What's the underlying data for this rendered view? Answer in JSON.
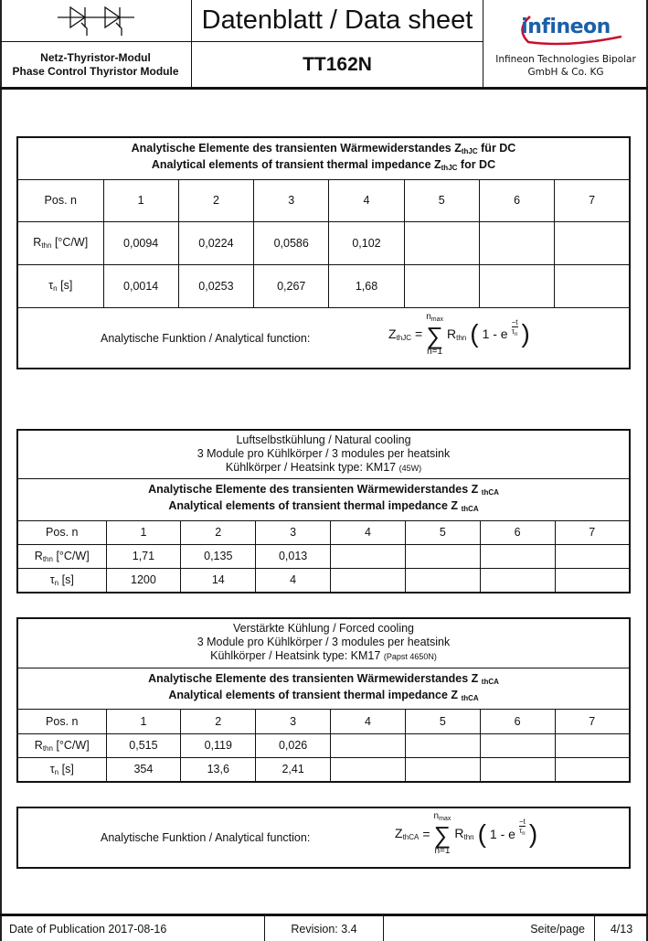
{
  "header": {
    "title": "Datenblatt / Data sheet",
    "module_de": "Netz-Thyristor-Modul",
    "module_en": "Phase Control Thyristor Module",
    "part": "TT162N",
    "logo_text": "infineon",
    "company_1": "Infineon Technologies Bipolar",
    "company_2": "GmbH & Co. KG",
    "symbol_icon": "thyristor-pair-symbol"
  },
  "table1": {
    "title_de": "Analytische Elemente des transienten Wärmewiderstandes Z",
    "title_de_sub": "thJC",
    "title_de_end": "für DC",
    "title_en": "Analytical elements of transient thermal impedance Z",
    "title_en_sub": "thJC",
    "title_en_end": "for DC",
    "pos_label": "Pos. n",
    "positions": [
      "1",
      "2",
      "3",
      "4",
      "5",
      "6",
      "7"
    ],
    "r_label": "R",
    "r_sub": "thn",
    "r_unit": "[°C/W]",
    "r_values": [
      "0,0094",
      "0,0224",
      "0,0586",
      "0,102",
      "",
      "",
      ""
    ],
    "tau_label": "τ",
    "tau_sub": "n",
    "tau_unit": "[s]",
    "tau_values": [
      "0,0014",
      "0,0253",
      "0,267",
      "1,68",
      "",
      "",
      ""
    ],
    "function_label": "Analytische Funktion / Analytical function:",
    "z": "Z",
    "z_sub": "thJC"
  },
  "formula": {
    "eq": "=",
    "sum": "∑",
    "nmax": "n",
    "nmax_sub": "max",
    "n1": "n=1",
    "r": "R",
    "r_sub": "thn",
    "one": "1  - e",
    "exp_num": "−t",
    "exp_den": "τ",
    "exp_den_sub": "n"
  },
  "table2": {
    "h1": "Luftselbstkühlung / Natural cooling",
    "h2": "3 Module pro Kühlkörper / 3 modules per heatsink",
    "h3": "Kühlkörper / Heatsink type: KM17",
    "h3_small": "(45W)",
    "title_de": "Analytische Elemente des transienten Wärmewiderstandes Z",
    "title_sub": "thCA",
    "title_en": "Analytical elements of transient thermal impedance Z",
    "r_values": [
      "1,71",
      "0,135",
      "0,013",
      "",
      "",
      "",
      ""
    ],
    "tau_values": [
      "1200",
      "14",
      "4",
      "",
      "",
      "",
      ""
    ]
  },
  "table3": {
    "h1": "Verstärkte Kühlung / Forced cooling",
    "h2": "3 Module pro Kühlkörper / 3 modules per heatsink",
    "h3": "Kühlkörper / Heatsink type: KM17",
    "h3_small": "(Papst 4650N)",
    "title_de": "Analytische Elemente des transienten Wärmewiderstandes Z",
    "title_sub": "thCA",
    "title_en": "Analytical elements of transient thermal impedance Z",
    "r_values": [
      "0,515",
      "0,119",
      "0,026",
      "",
      "",
      "",
      ""
    ],
    "tau_values": [
      "354",
      "13,6",
      "2,41",
      "",
      "",
      "",
      ""
    ]
  },
  "formula_box": {
    "function_label": "Analytische Funktion / Analytical function:",
    "z": "Z",
    "z_sub": "thCA"
  },
  "footer": {
    "date": "Date of Publication 2017-08-16",
    "revision": "Revision: 3.4",
    "page_label": "Seite/page",
    "page": "4/13"
  }
}
